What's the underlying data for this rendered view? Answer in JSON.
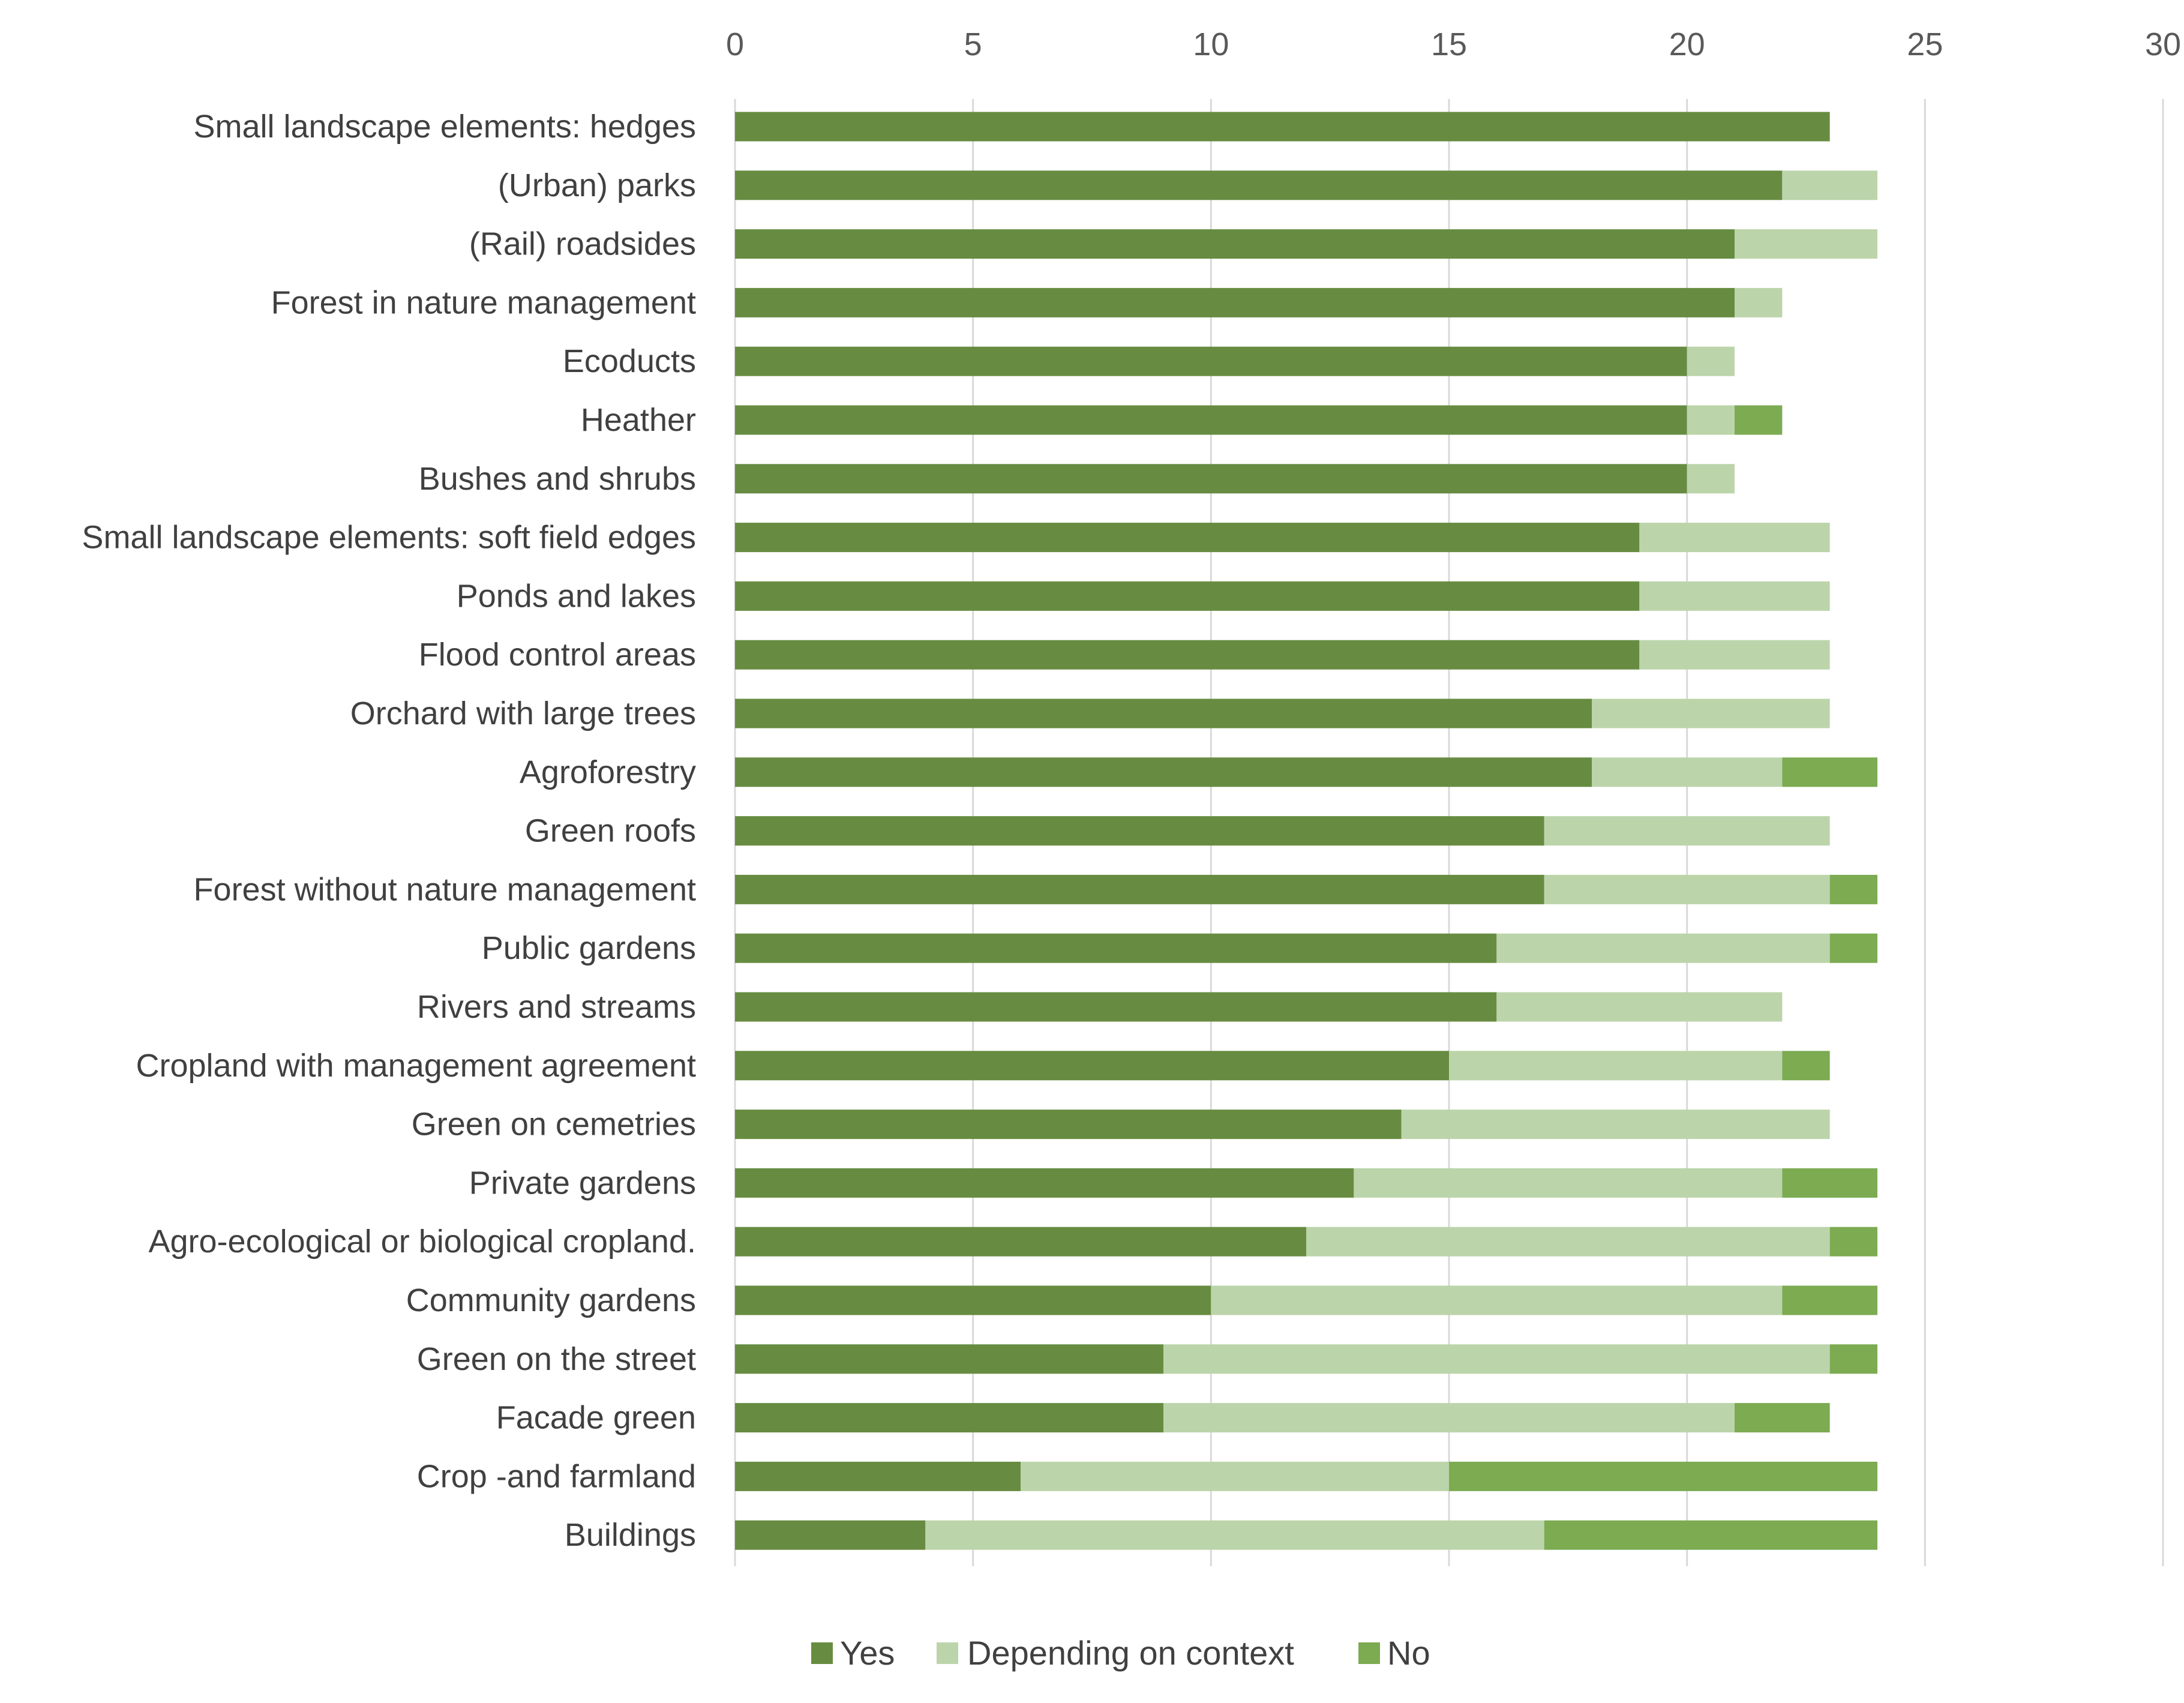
{
  "chart_data": {
    "type": "bar",
    "orientation": "horizontal",
    "stacked": true,
    "title": "",
    "xlabel": "",
    "ylabel": "",
    "xlim": [
      0,
      30
    ],
    "xticks": [
      "0",
      "5",
      "10",
      "15",
      "20",
      "25",
      "30"
    ],
    "x_axis_position": "top",
    "grid": true,
    "legend_position": "bottom",
    "categories": [
      "Small landscape elements: hedges",
      "(Urban) parks",
      "(Rail) roadsides",
      "Forest in nature management",
      "Ecoducts",
      "Heather",
      "Bushes and shrubs",
      "Small landscape elements: soft field edges",
      "Ponds and lakes",
      "Flood control areas",
      "Orchard with large trees",
      "Agroforestry",
      "Green roofs",
      "Forest without nature management",
      "Public gardens",
      "Rivers and streams",
      "Cropland with management agreement",
      "Green on cemetries",
      "Private gardens",
      "Agro-ecological or biological cropland.",
      "Community gardens",
      "Green on the street",
      "Facade green",
      "Crop -and farmland",
      "Buildings"
    ],
    "series": [
      {
        "name": "Yes",
        "color": "#678c41",
        "values": [
          23,
          22,
          21,
          21,
          20,
          20,
          20,
          19,
          19,
          19,
          18,
          18,
          17,
          17,
          16,
          16,
          15,
          14,
          13,
          12,
          10,
          9,
          9,
          6,
          4
        ]
      },
      {
        "name": "Depending on context",
        "color": "#bcd4aa",
        "values": [
          0,
          2,
          3,
          1,
          1,
          1,
          1,
          4,
          4,
          4,
          5,
          4,
          6,
          6,
          7,
          6,
          7,
          9,
          9,
          11,
          12,
          14,
          12,
          9,
          13
        ]
      },
      {
        "name": "No",
        "color": "#7cab52",
        "values": [
          0,
          0,
          0,
          0,
          0,
          1,
          0,
          0,
          0,
          0,
          0,
          2,
          0,
          1,
          1,
          0,
          1,
          0,
          2,
          1,
          2,
          1,
          2,
          9,
          7
        ]
      }
    ]
  }
}
